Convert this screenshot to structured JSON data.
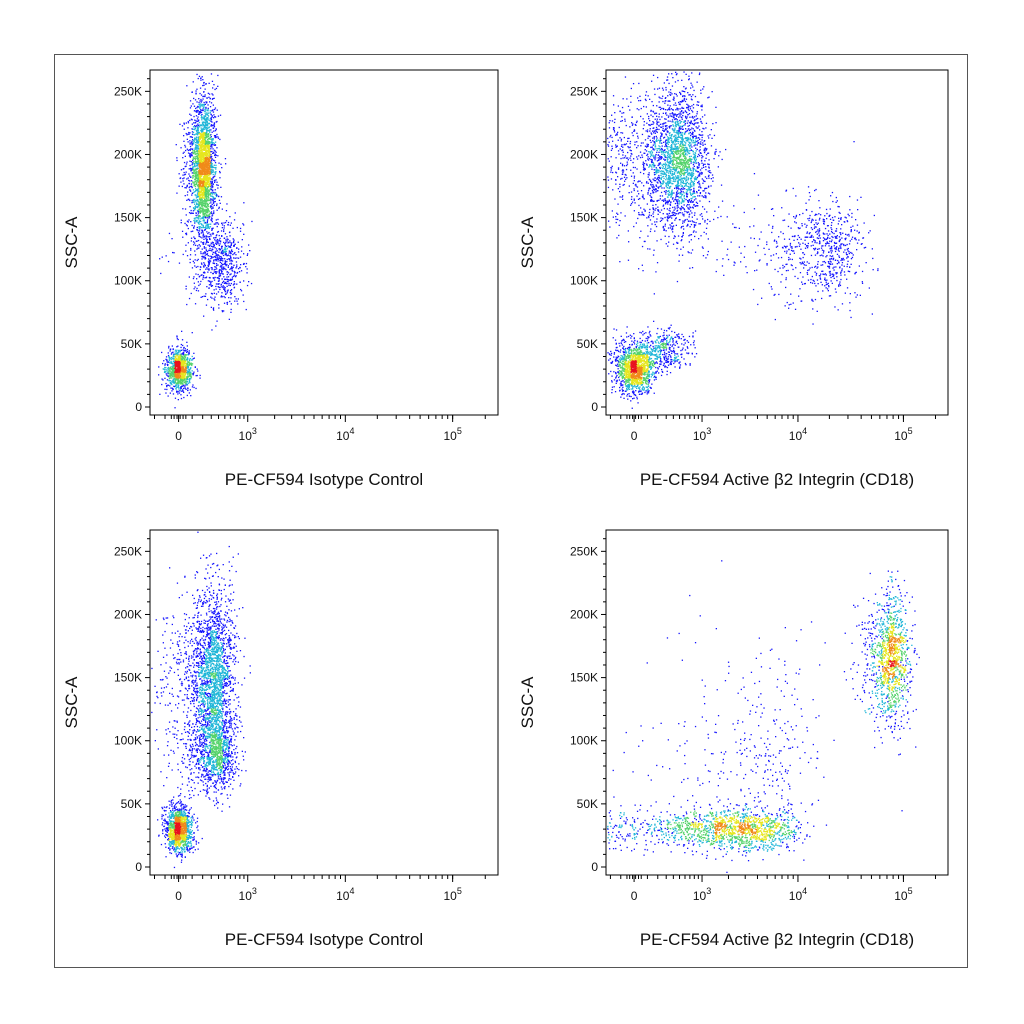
{
  "chart_data": [
    {
      "type": "scatter",
      "title": "",
      "xlabel": "PE-CF594 Isotype Control",
      "ylabel": "SSC-A",
      "x_scale": "biexponential",
      "x_ticks": [
        "0",
        "10^3",
        "10^4",
        "10^5"
      ],
      "y_ticks": [
        "0",
        "50K",
        "100K",
        "150K",
        "200K",
        "250K"
      ],
      "ylim": [
        0,
        262144
      ],
      "populations": [
        {
          "name": "",
          "x_median": 0,
          "y_median": 30000,
          "count": 1100,
          "x_spread": 40,
          "y_spread": 8000
        },
        {
          "name": "",
          "x_median": 200,
          "y_median": 190000,
          "count": 2600,
          "x_spread": 60,
          "y_spread": 26000
        },
        {
          "name": "",
          "x_median": 420,
          "y_median": 115000,
          "count": 700,
          "x_spread": 180,
          "y_spread": 18000
        }
      ]
    },
    {
      "type": "scatter",
      "title": "",
      "xlabel": "PE-CF594 Active β2 Integrin (CD18)",
      "ylabel": "SSC-A",
      "x_scale": "biexponential",
      "x_ticks": [
        "0",
        "10^3",
        "10^4",
        "10^5"
      ],
      "y_ticks": [
        "0",
        "50K",
        "100K",
        "150K",
        "200K",
        "250K"
      ],
      "ylim": [
        0,
        262144
      ],
      "populations": [
        {
          "name": "",
          "x_median": 0,
          "y_median": 30000,
          "count": 1300,
          "x_spread": 60,
          "y_spread": 9000
        },
        {
          "name": "",
          "x_median": 400,
          "y_median": 195000,
          "count": 2600,
          "x_spread": 300,
          "y_spread": 28000
        },
        {
          "name": "",
          "x_median": 15000,
          "y_median": 125000,
          "count": 800,
          "x_spread": 10000,
          "y_spread": 20000
        },
        {
          "name": "",
          "x_median": 200,
          "y_median": 45000,
          "count": 500,
          "x_spread": 200,
          "y_spread": 8000
        }
      ]
    },
    {
      "type": "scatter",
      "title": "",
      "xlabel": "PE-CF594 Isotype Control",
      "ylabel": "SSC-A",
      "x_scale": "biexponential",
      "x_ticks": [
        "0",
        "10^3",
        "10^4",
        "10^5"
      ],
      "y_ticks": [
        "0",
        "50K",
        "100K",
        "150K",
        "200K",
        "250K"
      ],
      "ylim": [
        0,
        262144
      ],
      "populations": [
        {
          "name": "",
          "x_median": 0,
          "y_median": 30000,
          "count": 1300,
          "x_spread": 40,
          "y_spread": 9000
        },
        {
          "name": "",
          "x_median": 300,
          "y_median": 150000,
          "count": 2400,
          "x_spread": 150,
          "y_spread": 35000
        },
        {
          "name": "",
          "x_median": 350,
          "y_median": 90000,
          "count": 900,
          "x_spread": 150,
          "y_spread": 15000
        }
      ]
    },
    {
      "type": "scatter",
      "title": "",
      "xlabel": "PE-CF594 Active β2 Integrin (CD18)",
      "ylabel": "SSC-A",
      "x_scale": "biexponential",
      "x_ticks": [
        "0",
        "10^3",
        "10^4",
        "10^5"
      ],
      "y_ticks": [
        "0",
        "50K",
        "100K",
        "150K",
        "200K",
        "250K"
      ],
      "ylim": [
        0,
        262144
      ],
      "populations": [
        {
          "name": "",
          "x_median": 300,
          "y_median": 30000,
          "count": 2600,
          "x_spread": 3000,
          "y_spread": 8000
        },
        {
          "name": "",
          "x_median": 75000,
          "y_median": 165000,
          "count": 1200,
          "x_spread": 15000,
          "y_spread": 25000
        },
        {
          "name": "",
          "x_median": 2000,
          "y_median": 90000,
          "count": 500,
          "x_spread": 5000,
          "y_spread": 40000
        }
      ]
    }
  ]
}
